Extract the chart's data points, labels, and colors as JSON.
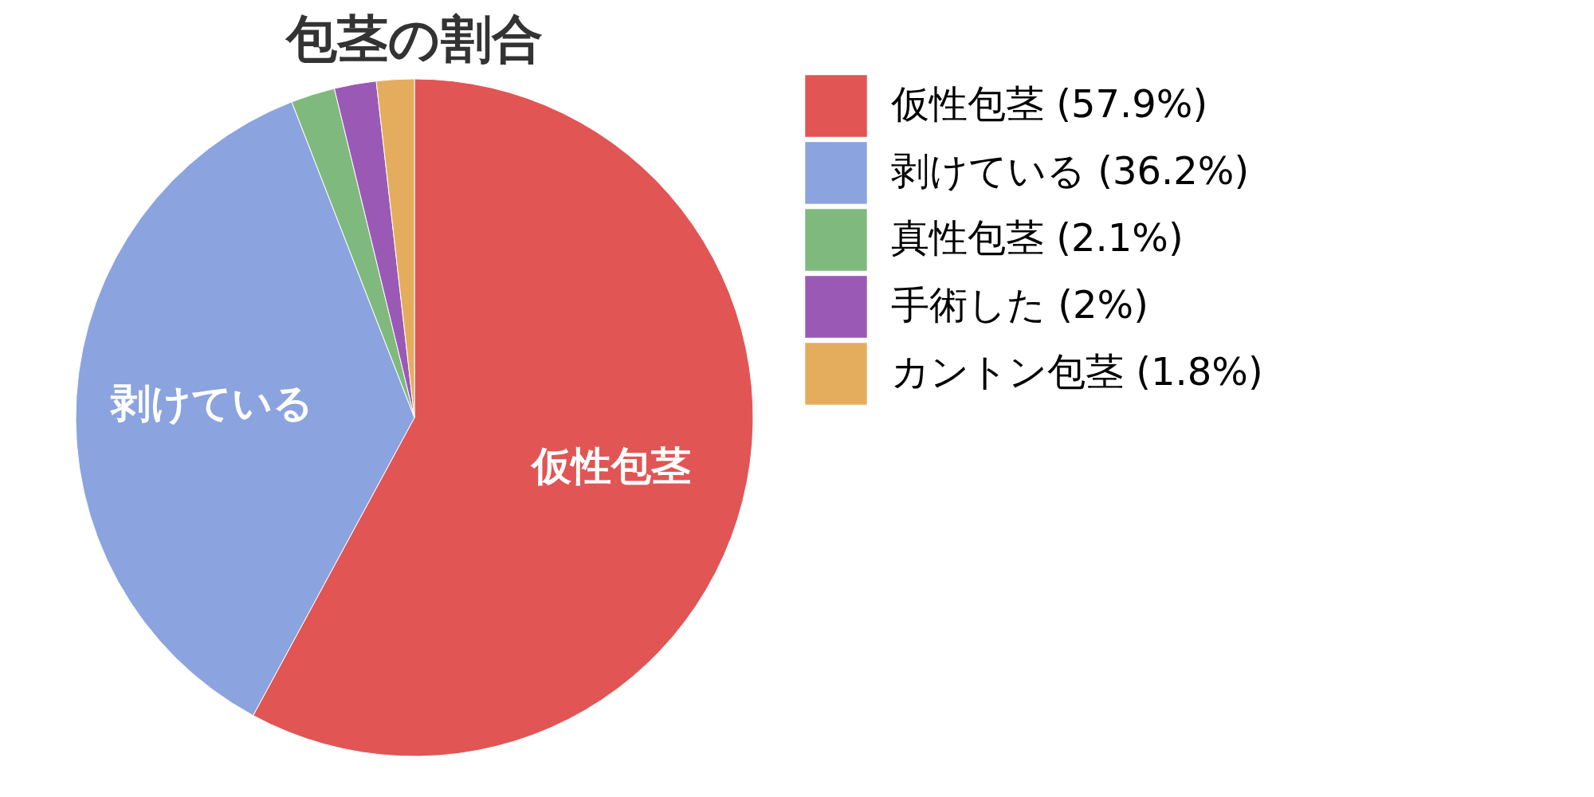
{
  "chart_data": {
    "type": "pie",
    "title": "包茎の割合",
    "categories": [
      "仮性包茎 (57.9%)",
      "剥けている (36.2%)",
      "真性包茎 (2.1%)",
      "手術した (2%)",
      "カントン包茎 (1.8%)"
    ],
    "values": [
      57.9,
      36.2,
      2.1,
      2,
      1.8
    ],
    "colors": [
      "#e15555",
      "#8ba3de",
      "#80b97e",
      "#9b59b6",
      "#e4ad5e"
    ],
    "value_labels": [
      "仮性包茎",
      "剥けている",
      null,
      null,
      null
    ],
    "legend": "right"
  }
}
